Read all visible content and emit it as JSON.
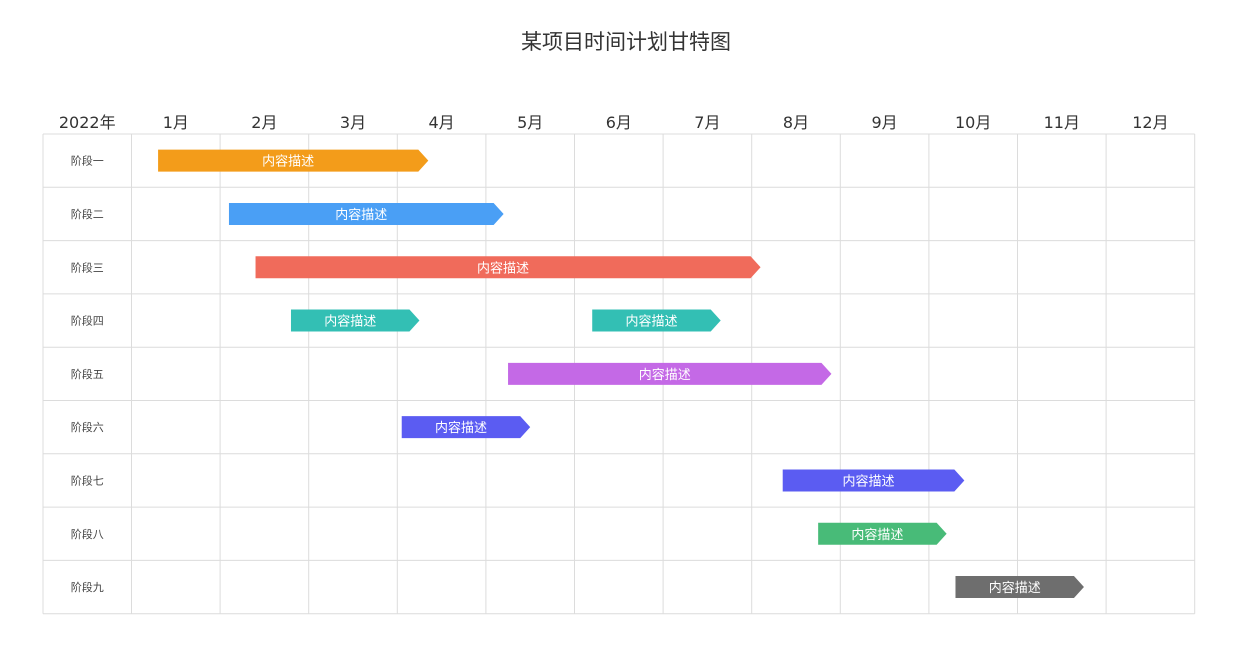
{
  "title": "某项目时间计划甘特图",
  "chart_data": {
    "type": "gantt",
    "title": "某项目时间计划甘特图",
    "year_label": "2022年",
    "months": [
      "1月",
      "2月",
      "3月",
      "4月",
      "5月",
      "6月",
      "7月",
      "8月",
      "9月",
      "10月",
      "11月",
      "12月"
    ],
    "phases": [
      "阶段一",
      "阶段二",
      "阶段三",
      "阶段四",
      "阶段五",
      "阶段六",
      "阶段七",
      "阶段八",
      "阶段九"
    ],
    "tasks": [
      {
        "phase": 0,
        "start": 1.3,
        "end": 4.35,
        "label": "内容描述",
        "color": "#f39c1a"
      },
      {
        "phase": 1,
        "start": 2.1,
        "end": 5.2,
        "label": "内容描述",
        "color": "#4a9ff5"
      },
      {
        "phase": 2,
        "start": 2.4,
        "end": 8.1,
        "label": "内容描述",
        "color": "#f06b5b"
      },
      {
        "phase": 3,
        "start": 2.8,
        "end": 4.25,
        "label": "内容描述",
        "color": "#33bfb4"
      },
      {
        "phase": 3,
        "start": 6.2,
        "end": 7.65,
        "label": "内容描述",
        "color": "#33bfb4"
      },
      {
        "phase": 4,
        "start": 5.25,
        "end": 8.9,
        "label": "内容描述",
        "color": "#c469e6"
      },
      {
        "phase": 5,
        "start": 4.05,
        "end": 5.5,
        "label": "内容描述",
        "color": "#5b5cf2"
      },
      {
        "phase": 6,
        "start": 8.35,
        "end": 10.4,
        "label": "内容描述",
        "color": "#5b5cf2"
      },
      {
        "phase": 7,
        "start": 8.75,
        "end": 10.2,
        "label": "内容描述",
        "color": "#48bb78"
      },
      {
        "phase": 8,
        "start": 10.3,
        "end": 11.75,
        "label": "内容描述",
        "color": "#6e6e6e"
      }
    ],
    "grid": true
  }
}
